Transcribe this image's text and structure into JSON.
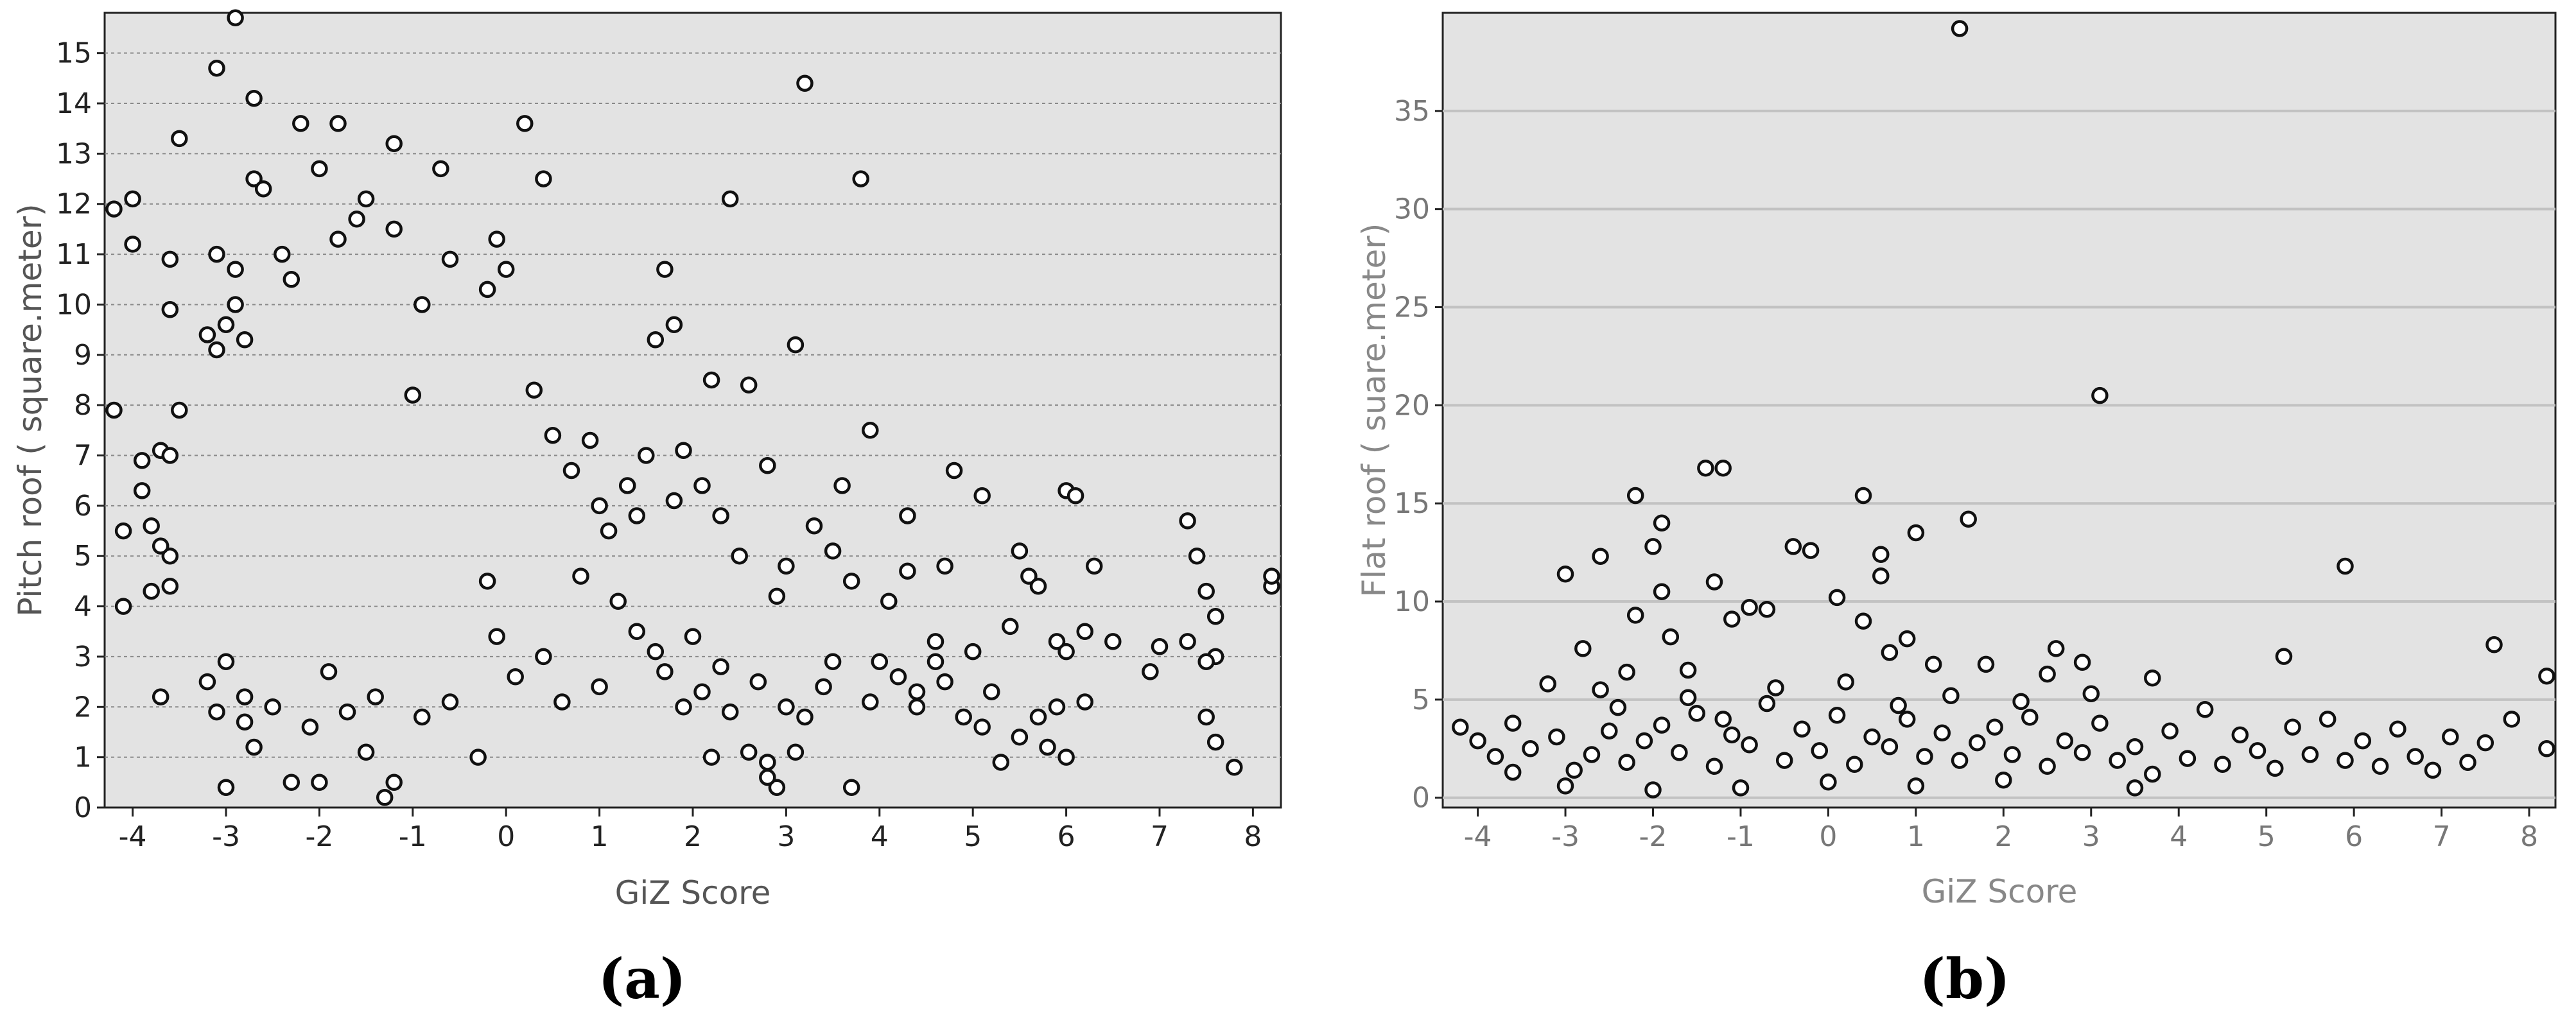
{
  "chart_data": [
    {
      "type": "scatter",
      "panel_label": "(a)",
      "xlabel": "GiZ Score",
      "ylabel": "Pitch roof ( square.meter)",
      "xlim": [
        -4.3,
        8.3
      ],
      "ylim": [
        0,
        15.8
      ],
      "xticks": [
        -4,
        -3,
        -2,
        -1,
        0,
        1,
        2,
        3,
        4,
        5,
        6,
        7,
        8
      ],
      "yticks": [
        0,
        1,
        2,
        3,
        4,
        5,
        6,
        7,
        8,
        9,
        10,
        11,
        12,
        13,
        14,
        15
      ],
      "grid": "horizontal dashed",
      "background": "#e3e3e3",
      "marker": "hollow circle",
      "points": [
        [
          -4.2,
          11.9
        ],
        [
          -4.0,
          12.1
        ],
        [
          -4.0,
          11.2
        ],
        [
          -4.2,
          7.9
        ],
        [
          -3.9,
          6.9
        ],
        [
          -4.1,
          5.5
        ],
        [
          -3.9,
          6.3
        ],
        [
          -4.1,
          4.0
        ],
        [
          -3.7,
          2.2
        ],
        [
          -3.5,
          13.3
        ],
        [
          -3.6,
          9.9
        ],
        [
          -3.6,
          10.9
        ],
        [
          -3.7,
          7.1
        ],
        [
          -3.6,
          7.0
        ],
        [
          -3.5,
          7.9
        ],
        [
          -3.6,
          5.0
        ],
        [
          -3.7,
          5.2
        ],
        [
          -3.8,
          5.6
        ],
        [
          -3.6,
          4.4
        ],
        [
          -3.8,
          4.3
        ],
        [
          -3.1,
          14.7
        ],
        [
          -2.9,
          15.7
        ],
        [
          -2.7,
          14.1
        ],
        [
          -3.1,
          11.0
        ],
        [
          -2.9,
          10.7
        ],
        [
          -2.9,
          10.0
        ],
        [
          -3.0,
          9.6
        ],
        [
          -3.2,
          9.4
        ],
        [
          -3.1,
          9.1
        ],
        [
          -2.8,
          9.3
        ],
        [
          -2.7,
          12.5
        ],
        [
          -2.6,
          12.3
        ],
        [
          -2.4,
          11.0
        ],
        [
          -2.3,
          10.5
        ],
        [
          -2.2,
          13.6
        ],
        [
          -2.0,
          12.7
        ],
        [
          -1.8,
          11.3
        ],
        [
          -1.8,
          13.6
        ],
        [
          -1.6,
          11.7
        ],
        [
          -1.5,
          12.1
        ],
        [
          -1.2,
          13.2
        ],
        [
          -1.2,
          11.5
        ],
        [
          -0.9,
          10.0
        ],
        [
          -0.7,
          12.7
        ],
        [
          -0.6,
          10.9
        ],
        [
          -0.2,
          10.3
        ],
        [
          -0.1,
          11.3
        ],
        [
          0.2,
          13.6
        ],
        [
          0.4,
          12.5
        ],
        [
          0.0,
          10.7
        ],
        [
          3.2,
          14.4
        ],
        [
          3.8,
          12.5
        ],
        [
          2.4,
          12.1
        ],
        [
          3.1,
          9.2
        ],
        [
          2.6,
          8.4
        ],
        [
          1.7,
          10.7
        ],
        [
          1.6,
          9.3
        ],
        [
          2.2,
          8.5
        ],
        [
          1.8,
          9.6
        ],
        [
          -1.0,
          8.2
        ],
        [
          -3.2,
          2.5
        ],
        [
          -3.1,
          1.9
        ],
        [
          -3.0,
          2.9
        ],
        [
          -2.8,
          1.7
        ],
        [
          -2.8,
          2.2
        ],
        [
          -2.7,
          1.2
        ],
        [
          -2.3,
          0.5
        ],
        [
          -2.0,
          0.5
        ],
        [
          -1.3,
          0.2
        ],
        [
          -1.2,
          0.5
        ],
        [
          -1.5,
          1.1
        ],
        [
          -0.3,
          1.0
        ],
        [
          -3.0,
          0.4
        ],
        [
          -2.5,
          2.0
        ],
        [
          -2.1,
          1.6
        ],
        [
          -1.9,
          2.7
        ],
        [
          -1.7,
          1.9
        ],
        [
          -1.4,
          2.2
        ],
        [
          -0.9,
          1.8
        ],
        [
          -0.6,
          2.1
        ],
        [
          2.9,
          0.4
        ],
        [
          2.8,
          0.6
        ],
        [
          2.8,
          0.9
        ],
        [
          3.7,
          0.4
        ],
        [
          2.2,
          1.0
        ],
        [
          2.6,
          1.1
        ],
        [
          3.1,
          1.1
        ],
        [
          4.0,
          2.9
        ],
        [
          4.4,
          2.0
        ],
        [
          4.7,
          2.5
        ],
        [
          5.3,
          0.9
        ],
        [
          5.5,
          1.4
        ],
        [
          5.7,
          1.8
        ],
        [
          6.0,
          1.0
        ],
        [
          5.9,
          2.0
        ],
        [
          6.2,
          3.5
        ],
        [
          6.3,
          4.8
        ],
        [
          6.5,
          3.3
        ],
        [
          6.9,
          2.7
        ],
        [
          7.0,
          3.2
        ],
        [
          6.0,
          6.3
        ],
        [
          6.1,
          6.2
        ],
        [
          5.1,
          6.2
        ],
        [
          4.8,
          6.7
        ],
        [
          4.3,
          5.8
        ],
        [
          3.6,
          6.4
        ],
        [
          3.3,
          5.6
        ],
        [
          2.8,
          6.8
        ],
        [
          7.3,
          5.7
        ],
        [
          7.4,
          5.0
        ],
        [
          7.5,
          4.3
        ],
        [
          7.6,
          3.8
        ],
        [
          7.6,
          3.0
        ],
        [
          7.5,
          2.9
        ],
        [
          7.5,
          1.8
        ],
        [
          7.6,
          1.3
        ],
        [
          7.8,
          0.8
        ],
        [
          8.2,
          4.4
        ],
        [
          8.2,
          4.6
        ],
        [
          7.3,
          3.3
        ],
        [
          4.3,
          4.7
        ],
        [
          4.6,
          3.3
        ],
        [
          4.7,
          4.8
        ],
        [
          5.0,
          3.1
        ],
        [
          5.2,
          2.3
        ],
        [
          5.4,
          3.6
        ],
        [
          5.5,
          5.1
        ],
        [
          5.6,
          4.6
        ],
        [
          5.7,
          4.4
        ],
        [
          5.9,
          3.3
        ],
        [
          6.0,
          3.1
        ],
        [
          6.2,
          2.1
        ],
        [
          4.4,
          2.3
        ],
        [
          4.6,
          2.9
        ],
        [
          4.9,
          1.8
        ],
        [
          5.1,
          1.6
        ],
        [
          5.8,
          1.2
        ],
        [
          4.2,
          2.6
        ],
        [
          3.9,
          2.1
        ],
        [
          3.5,
          2.9
        ],
        [
          3.4,
          2.4
        ],
        [
          3.0,
          2.0
        ],
        [
          3.2,
          1.8
        ],
        [
          2.7,
          2.5
        ],
        [
          2.4,
          1.9
        ],
        [
          2.3,
          2.8
        ],
        [
          2.1,
          2.3
        ],
        [
          2.0,
          3.4
        ],
        [
          1.9,
          2.0
        ],
        [
          1.7,
          2.7
        ],
        [
          3.9,
          7.5
        ],
        [
          3.7,
          4.5
        ],
        [
          4.1,
          4.1
        ],
        [
          3.5,
          5.1
        ],
        [
          3.0,
          4.8
        ],
        [
          2.5,
          5.0
        ],
        [
          2.9,
          4.2
        ],
        [
          2.3,
          5.8
        ],
        [
          2.1,
          6.4
        ],
        [
          1.9,
          7.1
        ],
        [
          1.8,
          6.1
        ],
        [
          1.5,
          7.0
        ],
        [
          1.4,
          5.8
        ],
        [
          1.3,
          6.4
        ],
        [
          1.1,
          5.5
        ],
        [
          1.0,
          6.0
        ],
        [
          0.9,
          7.3
        ],
        [
          0.7,
          6.7
        ],
        [
          0.5,
          7.4
        ],
        [
          0.3,
          8.3
        ],
        [
          0.8,
          4.6
        ],
        [
          1.2,
          4.1
        ],
        [
          1.4,
          3.5
        ],
        [
          1.6,
          3.1
        ],
        [
          1.0,
          2.4
        ],
        [
          0.6,
          2.1
        ],
        [
          0.4,
          3.0
        ],
        [
          0.1,
          2.6
        ],
        [
          -0.1,
          3.4
        ],
        [
          -0.2,
          4.5
        ]
      ]
    },
    {
      "type": "scatter",
      "panel_label": "(b)",
      "xlabel": "GiZ Score",
      "ylabel": "Flat roof ( suare.meter)",
      "xlim": [
        -4.4,
        8.3
      ],
      "ylim": [
        -0.5,
        40
      ],
      "xticks": [
        -4,
        -3,
        -2,
        -1,
        0,
        1,
        2,
        3,
        4,
        5,
        6,
        7,
        8
      ],
      "yticks": [
        0,
        5,
        10,
        15,
        20,
        25,
        30,
        35
      ],
      "grid": "horizontal solid",
      "background": "#e3e3e3",
      "marker": "hollow circle",
      "points": [
        [
          1.5,
          39.2
        ],
        [
          3.1,
          20.5
        ],
        [
          -1.4,
          16.8
        ],
        [
          -1.2,
          16.8
        ],
        [
          -2.2,
          15.4
        ],
        [
          0.4,
          15.4
        ],
        [
          1.6,
          14.2
        ],
        [
          -1.9,
          14.0
        ],
        [
          1.0,
          13.5
        ],
        [
          -2.0,
          12.8
        ],
        [
          -0.4,
          12.8
        ],
        [
          -0.2,
          12.6
        ],
        [
          -2.6,
          12.3
        ],
        [
          0.6,
          12.4
        ],
        [
          5.9,
          11.8
        ],
        [
          -3.0,
          11.4
        ],
        [
          0.6,
          11.3
        ],
        [
          -1.3,
          11.0
        ],
        [
          -1.9,
          10.5
        ],
        [
          -0.9,
          9.7
        ],
        [
          0.1,
          10.2
        ],
        [
          -1.1,
          9.1
        ],
        [
          -0.7,
          9.6
        ],
        [
          -2.2,
          9.3
        ],
        [
          -1.8,
          8.2
        ],
        [
          0.4,
          9.0
        ],
        [
          7.6,
          7.8
        ],
        [
          2.6,
          7.6
        ],
        [
          -2.8,
          7.6
        ],
        [
          5.2,
          7.2
        ],
        [
          0.7,
          7.4
        ],
        [
          1.2,
          6.8
        ],
        [
          1.8,
          6.8
        ],
        [
          2.9,
          6.9
        ],
        [
          3.7,
          6.1
        ],
        [
          -2.3,
          6.4
        ],
        [
          -1.6,
          6.5
        ],
        [
          0.9,
          8.1
        ],
        [
          2.5,
          6.3
        ],
        [
          3.0,
          5.3
        ],
        [
          -4.2,
          3.6
        ],
        [
          -4.0,
          2.9
        ],
        [
          -3.8,
          2.1
        ],
        [
          -3.6,
          3.8
        ],
        [
          -3.4,
          2.5
        ],
        [
          -3.1,
          3.1
        ],
        [
          -2.9,
          1.4
        ],
        [
          -2.7,
          2.2
        ],
        [
          -2.5,
          3.4
        ],
        [
          -2.3,
          1.8
        ],
        [
          -2.1,
          2.9
        ],
        [
          -1.9,
          3.7
        ],
        [
          -1.7,
          2.3
        ],
        [
          -1.5,
          4.3
        ],
        [
          -1.3,
          1.6
        ],
        [
          -1.1,
          3.2
        ],
        [
          -0.9,
          2.7
        ],
        [
          -0.7,
          4.8
        ],
        [
          -0.5,
          1.9
        ],
        [
          -0.3,
          3.5
        ],
        [
          -0.1,
          2.4
        ],
        [
          0.1,
          4.2
        ],
        [
          0.3,
          1.7
        ],
        [
          0.5,
          3.1
        ],
        [
          0.7,
          2.6
        ],
        [
          0.9,
          4.0
        ],
        [
          1.1,
          2.1
        ],
        [
          1.3,
          3.3
        ],
        [
          1.5,
          1.9
        ],
        [
          1.7,
          2.8
        ],
        [
          1.9,
          3.6
        ],
        [
          2.1,
          2.2
        ],
        [
          2.3,
          4.1
        ],
        [
          2.5,
          1.6
        ],
        [
          2.7,
          2.9
        ],
        [
          2.9,
          2.3
        ],
        [
          3.1,
          3.8
        ],
        [
          3.3,
          1.9
        ],
        [
          3.5,
          2.6
        ],
        [
          3.7,
          1.2
        ],
        [
          3.9,
          3.4
        ],
        [
          4.1,
          2.0
        ],
        [
          4.3,
          4.5
        ],
        [
          4.5,
          1.7
        ],
        [
          4.7,
          3.2
        ],
        [
          4.9,
          2.4
        ],
        [
          5.1,
          1.5
        ],
        [
          5.3,
          3.6
        ],
        [
          5.5,
          2.2
        ],
        [
          5.7,
          4.0
        ],
        [
          5.9,
          1.9
        ],
        [
          6.1,
          2.9
        ],
        [
          6.3,
          1.6
        ],
        [
          6.5,
          3.5
        ],
        [
          6.7,
          2.1
        ],
        [
          6.9,
          1.4
        ],
        [
          7.1,
          3.1
        ],
        [
          7.3,
          1.8
        ],
        [
          7.5,
          2.8
        ],
        [
          7.8,
          4.0
        ],
        [
          8.2,
          6.2
        ],
        [
          8.2,
          2.5
        ],
        [
          -3.0,
          0.6
        ],
        [
          -2.0,
          0.4
        ],
        [
          -1.0,
          0.5
        ],
        [
          0.0,
          0.8
        ],
        [
          1.0,
          0.6
        ],
        [
          2.0,
          0.9
        ],
        [
          3.5,
          0.5
        ],
        [
          -3.2,
          5.8
        ],
        [
          -2.6,
          5.5
        ],
        [
          -1.6,
          5.1
        ],
        [
          -0.6,
          5.6
        ],
        [
          0.2,
          5.9
        ],
        [
          1.4,
          5.2
        ],
        [
          -3.6,
          1.3
        ],
        [
          -2.4,
          4.6
        ],
        [
          -1.2,
          4.0
        ],
        [
          0.8,
          4.7
        ],
        [
          2.2,
          4.9
        ]
      ]
    }
  ]
}
